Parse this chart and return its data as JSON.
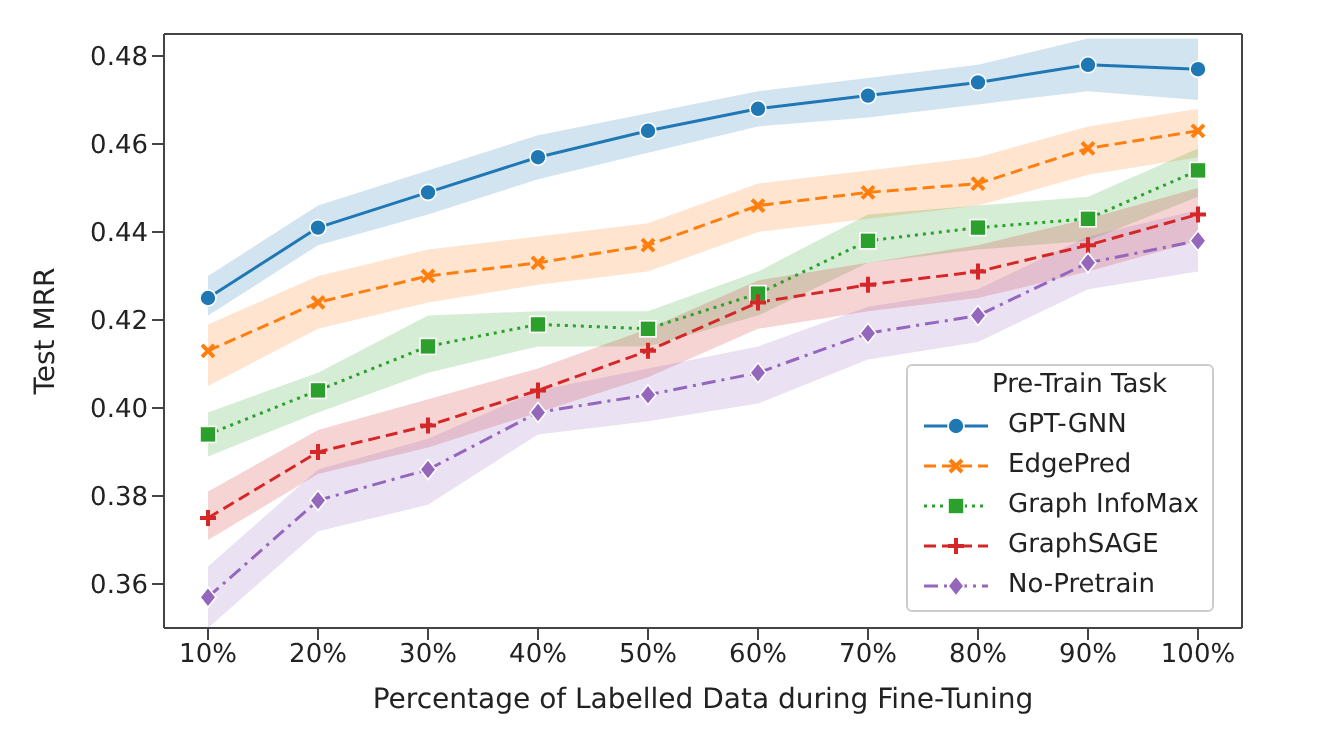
{
  "chart_data": {
    "type": "line",
    "xlabel": "Percentage of Labelled Data during Fine-Tuning",
    "ylabel": "Test MRR",
    "legend_title": "Pre-Train Task",
    "legend": "bottom right",
    "grid": false,
    "categories": [
      "10%",
      "20%",
      "30%",
      "40%",
      "50%",
      "60%",
      "70%",
      "80%",
      "90%",
      "100%"
    ],
    "ylim": [
      0.35,
      0.485
    ],
    "yticks": [
      {
        "value": 0.36,
        "label": "0.36"
      },
      {
        "value": 0.38,
        "label": "0.38"
      },
      {
        "value": 0.4,
        "label": "0.40"
      },
      {
        "value": 0.42,
        "label": "0.42"
      },
      {
        "value": 0.44,
        "label": "0.44"
      },
      {
        "value": 0.46,
        "label": "0.46"
      },
      {
        "value": 0.48,
        "label": "0.48"
      }
    ],
    "series": [
      {
        "name": "GPT-GNN",
        "color": "#1f77b4",
        "marker": "circle",
        "line_style": "solid",
        "values": [
          0.425,
          0.441,
          0.449,
          0.457,
          0.463,
          0.468,
          0.471,
          0.474,
          0.478,
          0.477
        ],
        "lower": [
          0.421,
          0.437,
          0.444,
          0.452,
          0.458,
          0.464,
          0.466,
          0.469,
          0.472,
          0.47
        ],
        "upper": [
          0.43,
          0.446,
          0.454,
          0.462,
          0.467,
          0.472,
          0.475,
          0.478,
          0.484,
          0.484
        ]
      },
      {
        "name": "EdgePred",
        "color": "#ff7f0e",
        "marker": "cross",
        "line_style": "dashed",
        "values": [
          0.413,
          0.424,
          0.43,
          0.433,
          0.437,
          0.446,
          0.449,
          0.451,
          0.459,
          0.463
        ],
        "lower": [
          0.405,
          0.418,
          0.424,
          0.428,
          0.431,
          0.44,
          0.443,
          0.446,
          0.453,
          0.457
        ],
        "upper": [
          0.419,
          0.43,
          0.436,
          0.439,
          0.442,
          0.451,
          0.454,
          0.457,
          0.464,
          0.468
        ]
      },
      {
        "name": "Graph InfoMax",
        "color": "#2ca02c",
        "marker": "square",
        "line_style": "dotted",
        "values": [
          0.394,
          0.404,
          0.414,
          0.419,
          0.418,
          0.426,
          0.438,
          0.441,
          0.443,
          0.454
        ],
        "lower": [
          0.389,
          0.399,
          0.408,
          0.414,
          0.414,
          0.421,
          0.433,
          0.436,
          0.438,
          0.448
        ],
        "upper": [
          0.399,
          0.408,
          0.421,
          0.422,
          0.422,
          0.431,
          0.444,
          0.446,
          0.448,
          0.459
        ]
      },
      {
        "name": "GraphSAGE",
        "color": "#d62728",
        "marker": "plus",
        "line_style": "dashed",
        "values": [
          0.375,
          0.39,
          0.396,
          0.404,
          0.413,
          0.424,
          0.428,
          0.431,
          0.437,
          0.444
        ],
        "lower": [
          0.37,
          0.385,
          0.391,
          0.399,
          0.407,
          0.418,
          0.422,
          0.425,
          0.431,
          0.438
        ],
        "upper": [
          0.381,
          0.395,
          0.402,
          0.409,
          0.418,
          0.429,
          0.433,
          0.437,
          0.443,
          0.45
        ]
      },
      {
        "name": "No-Pretrain",
        "color": "#9467bd",
        "marker": "diamond",
        "line_style": "dashdot",
        "values": [
          0.357,
          0.379,
          0.386,
          0.399,
          0.403,
          0.408,
          0.417,
          0.421,
          0.433,
          0.438
        ],
        "lower": [
          0.35,
          0.372,
          0.378,
          0.394,
          0.397,
          0.401,
          0.411,
          0.415,
          0.427,
          0.431
        ],
        "upper": [
          0.364,
          0.386,
          0.393,
          0.404,
          0.409,
          0.414,
          0.423,
          0.427,
          0.439,
          0.445
        ]
      }
    ]
  }
}
